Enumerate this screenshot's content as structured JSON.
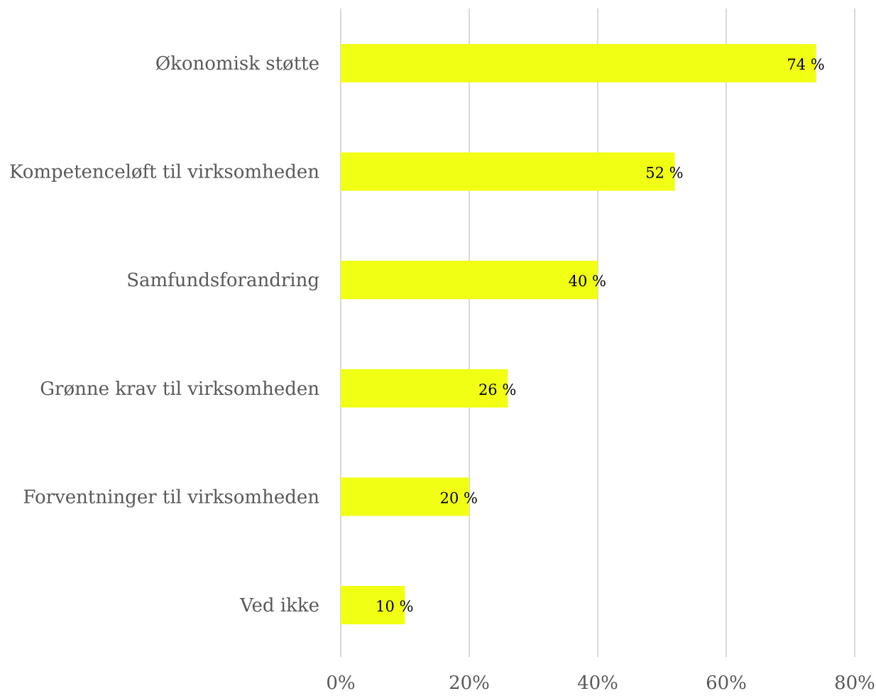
{
  "chart_data": {
    "type": "bar",
    "orientation": "horizontal",
    "categories": [
      "Økonomisk støtte",
      "Kompetenceløft til virksomheden",
      "Samfundsforandring",
      "Grønne krav til virksomheden",
      "Forventninger til virksomheden",
      "Ved ikke"
    ],
    "values": [
      74,
      52,
      40,
      26,
      20,
      10
    ],
    "data_labels": [
      "74 %",
      "52 %",
      "40 %",
      "26 %",
      "20 %",
      "10 %"
    ],
    "x_ticks": [
      0,
      20,
      40,
      60,
      80
    ],
    "x_tick_labels": [
      "0%",
      "20%",
      "40%",
      "60%",
      "80%"
    ],
    "xlim": [
      0,
      80
    ],
    "title": "",
    "xlabel": "",
    "ylabel": "",
    "grid": "vertical",
    "legend": "none",
    "bar_color": "#f0ff14",
    "gridline_color": "#d9d9d9",
    "text_color": "#595959"
  }
}
